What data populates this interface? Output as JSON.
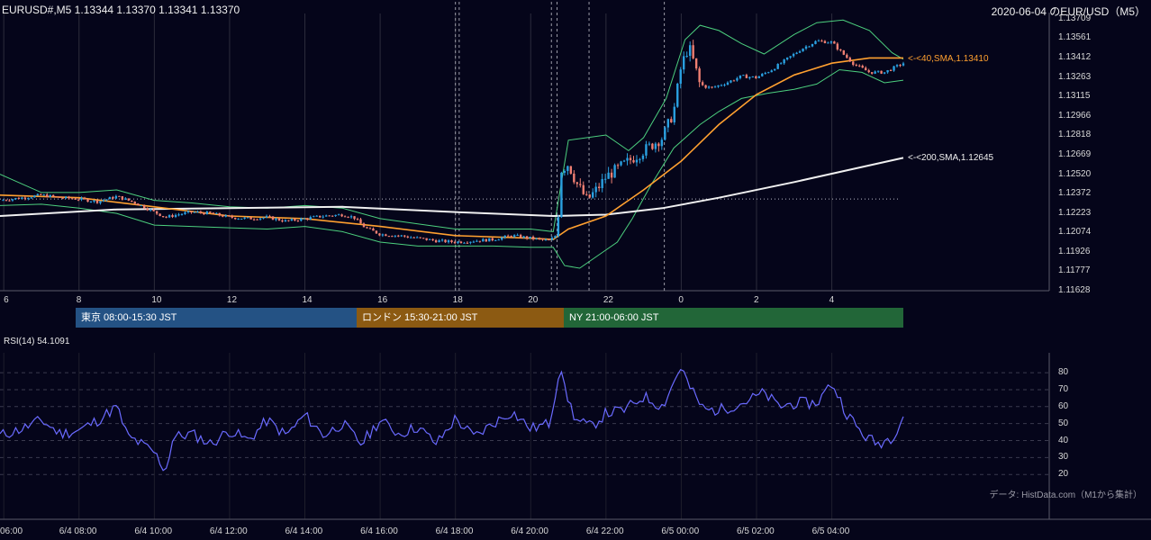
{
  "header": {
    "left": "EURUSD#,M5 1.13344 1.13370 1.13341 1.13370",
    "right": "2020-06-04 のEUR/USD（M5）"
  },
  "chart_data": [
    {
      "type": "candlestick",
      "symbol": "EURUSD#",
      "timeframe": "M5",
      "ohlc_last": [
        1.13344,
        1.1337,
        1.13341,
        1.1337
      ],
      "ylim": [
        1.11628,
        1.13709
      ],
      "y_ticks": [
        "1.13709",
        "1.13561",
        "1.13412",
        "1.13263",
        "1.13115",
        "1.12966",
        "1.12818",
        "1.12669",
        "1.12520",
        "1.12372",
        "1.12223",
        "1.12074",
        "1.11926",
        "1.11777",
        "1.11628"
      ],
      "x_ticks": [
        "6",
        "8",
        "10",
        "12",
        "14",
        "16",
        "18",
        "20",
        "22",
        "0",
        "2",
        "4"
      ],
      "x_tick_hours": [
        6,
        8,
        10,
        12,
        14,
        16,
        18,
        20,
        22,
        24,
        26,
        28
      ],
      "xlim_hours": [
        5.9,
        29.9
      ],
      "dotted_level": 1.1233,
      "vertical_dashed_hours": [
        18.0,
        18.1,
        20.55,
        20.7,
        21.55,
        23.55
      ],
      "close_path": [
        [
          5.9,
          1.1232
        ],
        [
          6.5,
          1.1234
        ],
        [
          7.0,
          1.1236
        ],
        [
          7.5,
          1.1234
        ],
        [
          8.0,
          1.1233
        ],
        [
          8.5,
          1.1231
        ],
        [
          9.0,
          1.1235
        ],
        [
          9.5,
          1.123
        ],
        [
          10.0,
          1.1223
        ],
        [
          10.3,
          1.1219
        ],
        [
          10.6,
          1.1221
        ],
        [
          11.0,
          1.1223
        ],
        [
          11.5,
          1.1222
        ],
        [
          12.0,
          1.1219
        ],
        [
          12.5,
          1.1218
        ],
        [
          13.0,
          1.1219
        ],
        [
          13.5,
          1.1216
        ],
        [
          14.0,
          1.1218
        ],
        [
          14.5,
          1.122
        ],
        [
          15.0,
          1.1221
        ],
        [
          15.3,
          1.1219
        ],
        [
          15.6,
          1.1211
        ],
        [
          16.0,
          1.1206
        ],
        [
          16.5,
          1.1205
        ],
        [
          17.0,
          1.1203
        ],
        [
          17.5,
          1.1201
        ],
        [
          18.0,
          1.12
        ],
        [
          18.5,
          1.1201
        ],
        [
          19.0,
          1.1202
        ],
        [
          19.5,
          1.1205
        ],
        [
          20.0,
          1.1203
        ],
        [
          20.5,
          1.1201
        ],
        [
          20.7,
          1.1206
        ],
        [
          20.8,
          1.1255
        ],
        [
          21.0,
          1.126
        ],
        [
          21.2,
          1.1246
        ],
        [
          21.5,
          1.1232
        ],
        [
          21.8,
          1.1242
        ],
        [
          22.0,
          1.125
        ],
        [
          22.5,
          1.126
        ],
        [
          23.0,
          1.127
        ],
        [
          23.5,
          1.128
        ],
        [
          23.8,
          1.13
        ],
        [
          24.0,
          1.1335
        ],
        [
          24.2,
          1.135
        ],
        [
          24.35,
          1.1336
        ],
        [
          24.5,
          1.132
        ],
        [
          24.8,
          1.1318
        ],
        [
          25.2,
          1.1322
        ],
        [
          25.6,
          1.1327
        ],
        [
          26.0,
          1.1326
        ],
        [
          26.4,
          1.1332
        ],
        [
          26.8,
          1.134
        ],
        [
          27.2,
          1.1348
        ],
        [
          27.6,
          1.1354
        ],
        [
          28.0,
          1.1353
        ],
        [
          28.3,
          1.1344
        ],
        [
          28.6,
          1.1336
        ],
        [
          29.0,
          1.133
        ],
        [
          29.4,
          1.133
        ],
        [
          29.9,
          1.1337
        ]
      ],
      "series": [
        {
          "name": "40,SMA",
          "label": "<-<40,SMA,1.13410",
          "value": 1.1341,
          "color": "#ffa030",
          "points": [
            [
              5.9,
              1.1236
            ],
            [
              8,
              1.1234
            ],
            [
              10,
              1.1227
            ],
            [
              12,
              1.122
            ],
            [
              14,
              1.1218
            ],
            [
              16,
              1.1212
            ],
            [
              18,
              1.1205
            ],
            [
              20,
              1.1203
            ],
            [
              20.6,
              1.1202
            ],
            [
              21,
              1.121
            ],
            [
              22,
              1.122
            ],
            [
              23,
              1.124
            ],
            [
              24,
              1.1262
            ],
            [
              25,
              1.129
            ],
            [
              26,
              1.1313
            ],
            [
              27,
              1.1328
            ],
            [
              28,
              1.1337
            ],
            [
              29,
              1.1341
            ],
            [
              29.9,
              1.1341
            ]
          ]
        },
        {
          "name": "200,SMA",
          "label": "<-<200,SMA,1.12645",
          "value": 1.12645,
          "color": "#f0f0f0",
          "points": [
            [
              5.9,
              1.122
            ],
            [
              9,
              1.1225
            ],
            [
              12,
              1.1226
            ],
            [
              15,
              1.1227
            ],
            [
              18,
              1.1223
            ],
            [
              20.6,
              1.122
            ],
            [
              22,
              1.1221
            ],
            [
              23.5,
              1.1226
            ],
            [
              25,
              1.1234
            ],
            [
              27,
              1.1246
            ],
            [
              29.9,
              1.12645
            ]
          ]
        }
      ],
      "bands": {
        "upper": [
          [
            5.9,
            1.1252
          ],
          [
            7,
            1.1238
          ],
          [
            8,
            1.1238
          ],
          [
            9,
            1.124
          ],
          [
            10,
            1.1232
          ],
          [
            11,
            1.123
          ],
          [
            12,
            1.1227
          ],
          [
            13,
            1.1226
          ],
          [
            14,
            1.1228
          ],
          [
            15,
            1.1226
          ],
          [
            16,
            1.1218
          ],
          [
            17,
            1.1214
          ],
          [
            18,
            1.121
          ],
          [
            19,
            1.121
          ],
          [
            20,
            1.121
          ],
          [
            20.6,
            1.1208
          ],
          [
            21,
            1.1278
          ],
          [
            22,
            1.1282
          ],
          [
            22.6,
            1.127
          ],
          [
            23,
            1.128
          ],
          [
            23.6,
            1.131
          ],
          [
            24.1,
            1.1355
          ],
          [
            24.5,
            1.1366
          ],
          [
            25,
            1.1362
          ],
          [
            25.6,
            1.1352
          ],
          [
            26.2,
            1.1344
          ],
          [
            27,
            1.1359
          ],
          [
            27.6,
            1.1368
          ],
          [
            28.3,
            1.137
          ],
          [
            29,
            1.1362
          ],
          [
            29.6,
            1.1345
          ],
          [
            29.9,
            1.134
          ]
        ],
        "lower": [
          [
            5.9,
            1.1228
          ],
          [
            7,
            1.1229
          ],
          [
            8,
            1.1226
          ],
          [
            9,
            1.1222
          ],
          [
            10,
            1.1213
          ],
          [
            11,
            1.1212
          ],
          [
            12,
            1.1211
          ],
          [
            13,
            1.121
          ],
          [
            14,
            1.1212
          ],
          [
            15,
            1.1208
          ],
          [
            16,
            1.12
          ],
          [
            17,
            1.1197
          ],
          [
            18,
            1.1197
          ],
          [
            19,
            1.1197
          ],
          [
            20,
            1.1196
          ],
          [
            20.6,
            1.1196
          ],
          [
            20.9,
            1.1182
          ],
          [
            21.3,
            1.118
          ],
          [
            21.8,
            1.119
          ],
          [
            22.3,
            1.12
          ],
          [
            22.7,
            1.1218
          ],
          [
            23.2,
            1.1244
          ],
          [
            23.8,
            1.1272
          ],
          [
            24.5,
            1.129
          ],
          [
            25,
            1.13
          ],
          [
            25.6,
            1.131
          ],
          [
            26.3,
            1.1314
          ],
          [
            27,
            1.1317
          ],
          [
            27.6,
            1.1321
          ],
          [
            28.2,
            1.1332
          ],
          [
            28.8,
            1.133
          ],
          [
            29.4,
            1.1322
          ],
          [
            29.9,
            1.1324
          ]
        ]
      }
    },
    {
      "type": "line",
      "name": "RSI(14)",
      "label": "RSI(14) 54.1091",
      "value": 54.1091,
      "color": "#6a6aff",
      "ylim": [
        18,
        88
      ],
      "y_ticks": [
        20,
        30,
        40,
        50,
        60,
        70,
        80
      ],
      "x": [
        5.9,
        6.5,
        7.0,
        7.5,
        8.0,
        8.5,
        9.0,
        9.3,
        9.5,
        10.0,
        10.3,
        10.5,
        11.0,
        11.5,
        12.0,
        12.5,
        13.0,
        13.5,
        14.0,
        14.5,
        15.0,
        15.5,
        16.0,
        16.5,
        17.0,
        17.5,
        18.0,
        18.5,
        19.0,
        19.5,
        20.0,
        20.5,
        20.8,
        20.9,
        21.2,
        21.6,
        22.0,
        22.5,
        23.0,
        23.5,
        24.0,
        24.2,
        24.6,
        25.0,
        25.6,
        26.2,
        26.6,
        27.0,
        27.6,
        28.0,
        28.4,
        28.8,
        29.2,
        29.6,
        29.9
      ],
      "values": [
        43,
        47,
        52,
        44,
        46,
        52,
        60,
        42,
        40,
        33,
        22,
        42,
        44,
        38,
        46,
        40,
        52,
        43,
        55,
        43,
        50,
        38,
        52,
        44,
        48,
        38,
        53,
        42,
        50,
        57,
        47,
        50,
        86,
        70,
        52,
        48,
        56,
        58,
        66,
        60,
        84,
        72,
        58,
        58,
        62,
        68,
        60,
        62,
        62,
        74,
        56,
        44,
        38,
        42,
        54
      ]
    }
  ],
  "x_time_labels": [
    "06:00",
    "6/4 08:00",
    "6/4 10:00",
    "6/4 12:00",
    "6/4 14:00",
    "6/4 16:00",
    "6/4 18:00",
    "6/4 20:00",
    "6/4 22:00",
    "6/5 00:00",
    "6/5 02:00",
    "6/5 04:00"
  ],
  "sessions": [
    {
      "label": "東京 08:00-15:30 JST",
      "color": "#245284"
    },
    {
      "label": "ロンドン 15:30-21:00 JST",
      "color": "#8c5a12"
    },
    {
      "label": "NY 21:00-06:00 JST",
      "color": "#226638"
    }
  ],
  "rsi_label": "RSI(14) 54.1091",
  "credit": "データ: HistData.com（M1から集計）",
  "colors": {
    "bg": "#05051a",
    "grid": "#3a3a4a",
    "up": "#2aa0e0",
    "down": "#ef7f72",
    "band": "#4ccf7e"
  }
}
